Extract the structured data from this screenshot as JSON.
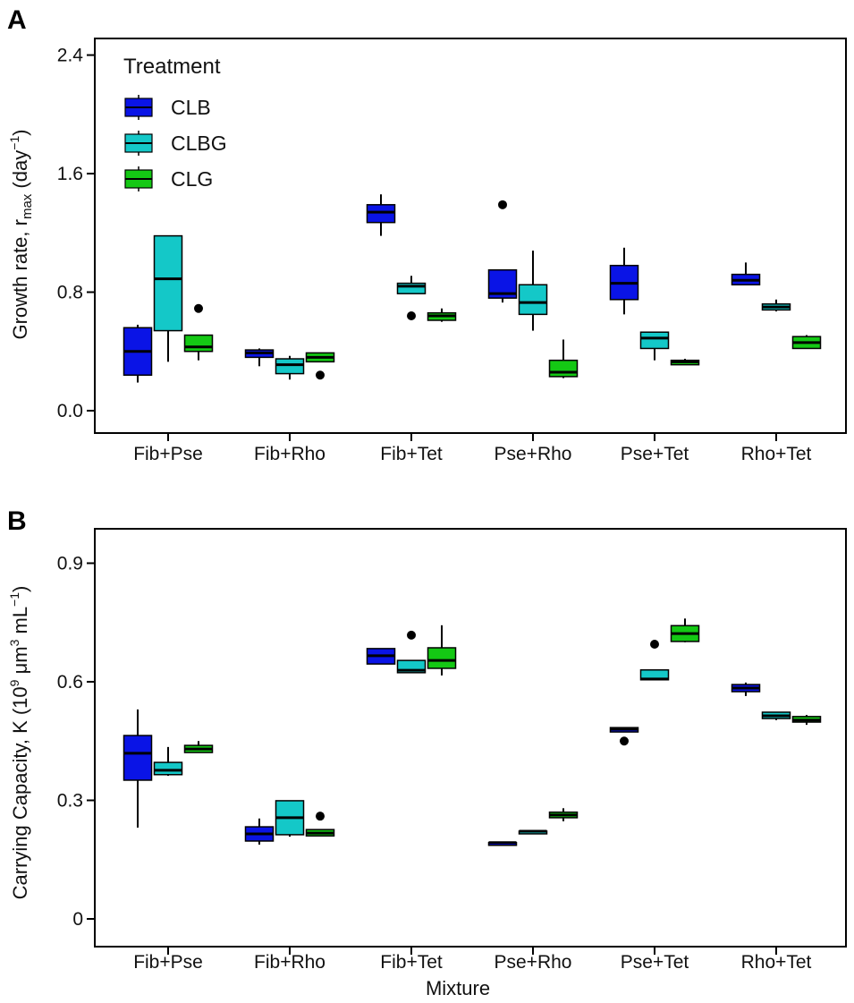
{
  "colors": {
    "CLB": "#0a14e6",
    "CLBG": "#14c8c8",
    "CLG": "#14c814"
  },
  "legend": {
    "title": "Treatment",
    "entries": [
      "CLB",
      "CLBG",
      "CLG"
    ]
  },
  "xlabel": "Mixture",
  "chart_data": [
    {
      "type": "box",
      "panel_label": "A",
      "ylabel": "Growth rate, r",
      "ylabel_sub": "max",
      "ylabel_unit": "(day",
      "ylabel_sup": "−1",
      "ylabel_close": ")",
      "ylim": [
        -0.1,
        2.55
      ],
      "yticks": [
        0.0,
        0.8,
        1.6,
        2.4
      ],
      "ytick_labels": [
        "0.0",
        "0.8",
        "1.6",
        "2.4"
      ],
      "categories": [
        "Fib+Pse",
        "Fib+Rho",
        "Fib+Tet",
        "Pse+Rho",
        "Pse+Tet",
        "Rho+Tet"
      ],
      "series": [
        {
          "name": "CLB",
          "boxes": [
            {
              "low": 0.19,
              "q1": 0.24,
              "med": 0.4,
              "q3": 0.56,
              "high": 0.58,
              "outliers": []
            },
            {
              "low": 0.3,
              "q1": 0.36,
              "med": 0.39,
              "q3": 0.41,
              "high": 0.42,
              "outliers": []
            },
            {
              "low": 1.18,
              "q1": 1.27,
              "med": 1.34,
              "q3": 1.39,
              "high": 1.46,
              "outliers": []
            },
            {
              "low": 0.73,
              "q1": 0.76,
              "med": 0.79,
              "q3": 0.95,
              "high": 0.95,
              "outliers": [
                1.39
              ]
            },
            {
              "low": 0.65,
              "q1": 0.75,
              "med": 0.86,
              "q3": 0.98,
              "high": 1.1,
              "outliers": []
            },
            {
              "low": 0.85,
              "q1": 0.85,
              "med": 0.88,
              "q3": 0.92,
              "high": 1.0,
              "outliers": []
            }
          ]
        },
        {
          "name": "CLBG",
          "boxes": [
            {
              "low": 0.33,
              "q1": 0.54,
              "med": 0.89,
              "q3": 1.18,
              "high": 1.18,
              "outliers": []
            },
            {
              "low": 0.21,
              "q1": 0.25,
              "med": 0.31,
              "q3": 0.35,
              "high": 0.37,
              "outliers": []
            },
            {
              "low": 0.79,
              "q1": 0.79,
              "med": 0.84,
              "q3": 0.86,
              "high": 0.91,
              "outliers": [
                0.64
              ]
            },
            {
              "low": 0.54,
              "q1": 0.65,
              "med": 0.73,
              "q3": 0.85,
              "high": 1.08,
              "outliers": []
            },
            {
              "low": 0.34,
              "q1": 0.42,
              "med": 0.49,
              "q3": 0.53,
              "high": 0.53,
              "outliers": []
            },
            {
              "low": 0.67,
              "q1": 0.68,
              "med": 0.7,
              "q3": 0.72,
              "high": 0.75,
              "outliers": []
            }
          ]
        },
        {
          "name": "CLG",
          "boxes": [
            {
              "low": 0.34,
              "q1": 0.4,
              "med": 0.43,
              "q3": 0.51,
              "high": 0.51,
              "outliers": [
                0.69
              ]
            },
            {
              "low": 0.33,
              "q1": 0.33,
              "med": 0.36,
              "q3": 0.39,
              "high": 0.39,
              "outliers": [
                0.24
              ]
            },
            {
              "low": 0.6,
              "q1": 0.61,
              "med": 0.64,
              "q3": 0.66,
              "high": 0.69,
              "outliers": []
            },
            {
              "low": 0.22,
              "q1": 0.23,
              "med": 0.26,
              "q3": 0.34,
              "high": 0.48,
              "outliers": []
            },
            {
              "low": 0.31,
              "q1": 0.31,
              "med": 0.33,
              "q3": 0.34,
              "high": 0.35,
              "outliers": []
            },
            {
              "low": 0.42,
              "q1": 0.42,
              "med": 0.46,
              "q3": 0.5,
              "high": 0.51,
              "outliers": []
            }
          ]
        }
      ]
    },
    {
      "type": "box",
      "panel_label": "B",
      "ylabel": "Carrying Capacity, K (10",
      "ylabel_sup1": "9",
      "ylabel_mid": " μm",
      "ylabel_sup2": "3",
      "ylabel_unit": " mL",
      "ylabel_sup3": "−1",
      "ylabel_close": ")",
      "ylim": [
        -0.07,
        0.97
      ],
      "yticks": [
        0,
        0.3,
        0.6,
        0.9
      ],
      "ytick_labels": [
        "0",
        "0.3",
        "0.6",
        "0.9"
      ],
      "categories": [
        "Fib+Pse",
        "Fib+Rho",
        "Fib+Tet",
        "Pse+Rho",
        "Pse+Tet",
        "Rho+Tet"
      ],
      "series": [
        {
          "name": "CLB",
          "boxes": [
            {
              "low": 0.231,
              "q1": 0.351,
              "med": 0.419,
              "q3": 0.464,
              "high": 0.53,
              "outliers": []
            },
            {
              "low": 0.188,
              "q1": 0.197,
              "med": 0.215,
              "q3": 0.233,
              "high": 0.254,
              "outliers": []
            },
            {
              "low": 0.645,
              "q1": 0.645,
              "med": 0.666,
              "q3": 0.684,
              "high": 0.684,
              "outliers": []
            },
            {
              "low": 0.193,
              "q1": 0.193,
              "med": 0.193,
              "q3": 0.193,
              "high": 0.193,
              "outliers": []
            },
            {
              "low": 0.473,
              "q1": 0.473,
              "med": 0.48,
              "q3": 0.484,
              "high": 0.484,
              "outliers": [
                0.45
              ]
            },
            {
              "low": 0.564,
              "q1": 0.575,
              "med": 0.584,
              "q3": 0.593,
              "high": 0.598,
              "outliers": []
            }
          ]
        },
        {
          "name": "CLBG",
          "boxes": [
            {
              "low": 0.362,
              "q1": 0.365,
              "med": 0.376,
              "q3": 0.396,
              "high": 0.435,
              "outliers": []
            },
            {
              "low": 0.208,
              "q1": 0.213,
              "med": 0.256,
              "q3": 0.299,
              "high": 0.3,
              "outliers": []
            },
            {
              "low": 0.623,
              "q1": 0.623,
              "med": 0.629,
              "q3": 0.654,
              "high": 0.654,
              "outliers": [
                0.718
              ]
            },
            {
              "low": 0.222,
              "q1": 0.222,
              "med": 0.222,
              "q3": 0.222,
              "high": 0.222,
              "outliers": []
            },
            {
              "low": 0.605,
              "q1": 0.605,
              "med": 0.607,
              "q3": 0.63,
              "high": 0.63,
              "outliers": [
                0.695
              ]
            },
            {
              "low": 0.503,
              "q1": 0.507,
              "med": 0.514,
              "q3": 0.523,
              "high": 0.523,
              "outliers": []
            }
          ]
        },
        {
          "name": "CLG",
          "boxes": [
            {
              "low": 0.421,
              "q1": 0.421,
              "med": 0.43,
              "q3": 0.439,
              "high": 0.45,
              "outliers": []
            },
            {
              "low": 0.21,
              "q1": 0.21,
              "med": 0.217,
              "q3": 0.226,
              "high": 0.226,
              "outliers": [
                0.26
              ]
            },
            {
              "low": 0.616,
              "q1": 0.634,
              "med": 0.654,
              "q3": 0.686,
              "high": 0.743,
              "outliers": []
            },
            {
              "low": 0.247,
              "q1": 0.256,
              "med": 0.263,
              "q3": 0.27,
              "high": 0.28,
              "outliers": []
            },
            {
              "low": 0.7,
              "q1": 0.702,
              "med": 0.722,
              "q3": 0.742,
              "high": 0.76,
              "outliers": []
            },
            {
              "low": 0.491,
              "q1": 0.498,
              "med": 0.503,
              "q3": 0.512,
              "high": 0.516,
              "outliers": []
            }
          ]
        }
      ]
    }
  ]
}
